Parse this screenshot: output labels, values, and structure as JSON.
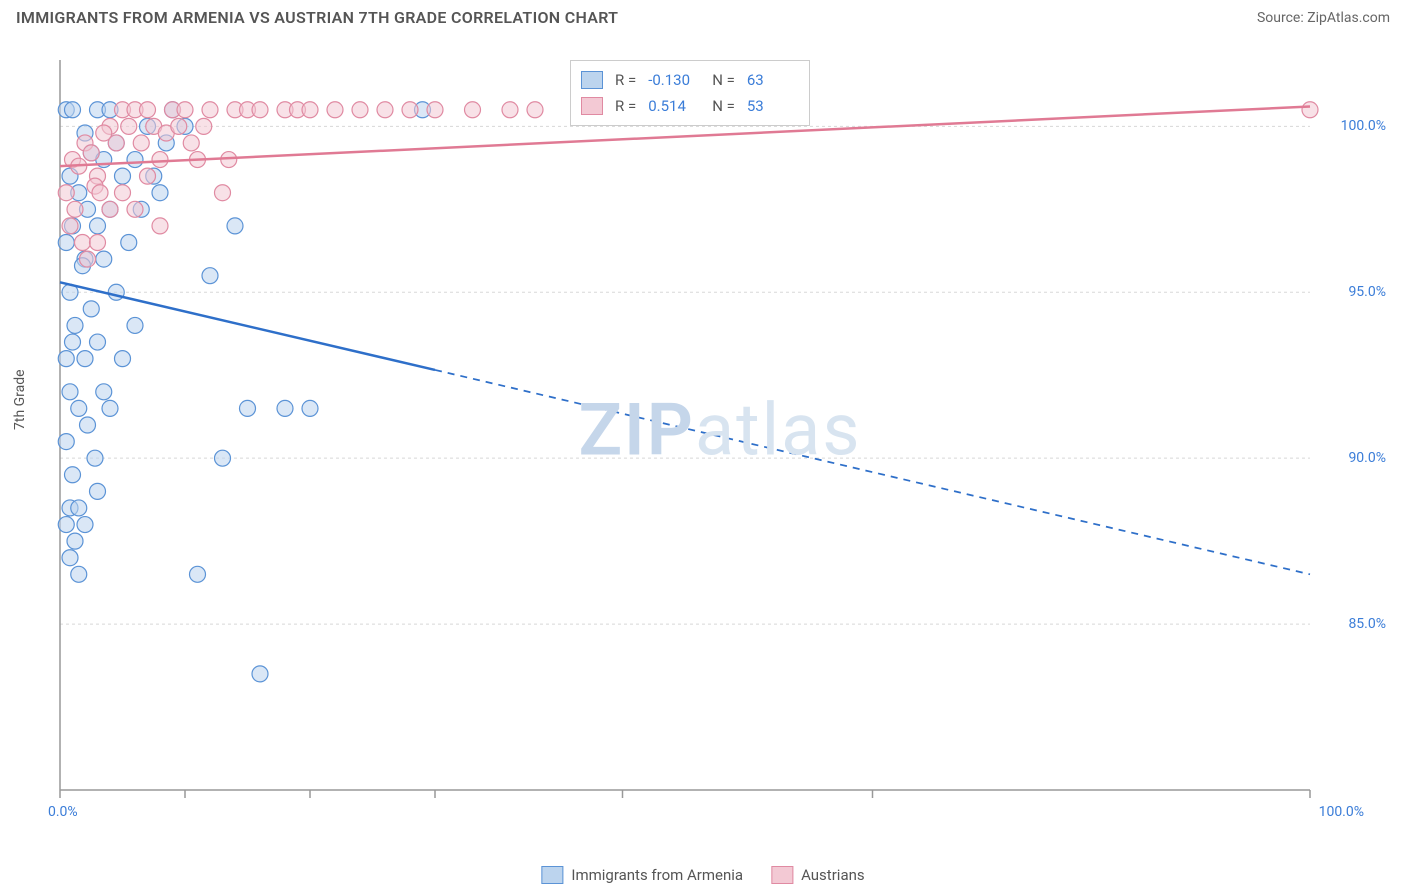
{
  "header": {
    "title": "IMMIGRANTS FROM ARMENIA VS AUSTRIAN 7TH GRADE CORRELATION CHART",
    "source": "Source: ZipAtlas.com"
  },
  "chart": {
    "type": "scatter",
    "y_axis_label": "7th Grade",
    "watermark": "ZIPatlas",
    "background_color": "#ffffff",
    "grid_color": "#d8d8d8",
    "axis_color": "#999999",
    "xlim": [
      0,
      100
    ],
    "ylim": [
      80,
      102
    ],
    "x_ticks": [
      {
        "v": 0,
        "label": "0.0%"
      },
      {
        "v": 10,
        "label": ""
      },
      {
        "v": 20,
        "label": ""
      },
      {
        "v": 30,
        "label": ""
      },
      {
        "v": 45,
        "label": ""
      },
      {
        "v": 65,
        "label": ""
      },
      {
        "v": 100,
        "label": "100.0%"
      }
    ],
    "y_ticks": [
      {
        "v": 85,
        "label": "85.0%"
      },
      {
        "v": 90,
        "label": "90.0%"
      },
      {
        "v": 95,
        "label": "95.0%"
      },
      {
        "v": 100,
        "label": "100.0%"
      }
    ],
    "series": [
      {
        "id": "armenia",
        "label": "Immigrants from Armenia",
        "color_fill": "#bcd4ee",
        "color_stroke": "#5b93d6",
        "marker_radius": 8,
        "fill_opacity": 0.55,
        "R": "-0.130",
        "N": "63",
        "trend": {
          "x1": 0,
          "y1": 95.3,
          "x2": 100,
          "y2": 86.5,
          "solid_until_x": 30,
          "color": "#2e6fc9",
          "width": 2.5
        },
        "points": [
          {
            "x": 0.5,
            "y": 100.5
          },
          {
            "x": 1,
            "y": 100.5
          },
          {
            "x": 2,
            "y": 99.8
          },
          {
            "x": 2.5,
            "y": 99.2
          },
          {
            "x": 3,
            "y": 100.5
          },
          {
            "x": 0.8,
            "y": 98.5
          },
          {
            "x": 1.5,
            "y": 98
          },
          {
            "x": 2.2,
            "y": 97.5
          },
          {
            "x": 3.5,
            "y": 99
          },
          {
            "x": 4,
            "y": 100.5
          },
          {
            "x": 1,
            "y": 97
          },
          {
            "x": 2,
            "y": 96
          },
          {
            "x": 0.5,
            "y": 96.5
          },
          {
            "x": 1.8,
            "y": 95.8
          },
          {
            "x": 3,
            "y": 97
          },
          {
            "x": 4.5,
            "y": 99.5
          },
          {
            "x": 0.8,
            "y": 95
          },
          {
            "x": 2.5,
            "y": 94.5
          },
          {
            "x": 1.2,
            "y": 94
          },
          {
            "x": 3.5,
            "y": 96
          },
          {
            "x": 0.5,
            "y": 93
          },
          {
            "x": 1,
            "y": 93.5
          },
          {
            "x": 4,
            "y": 97.5
          },
          {
            "x": 2,
            "y": 93
          },
          {
            "x": 0.8,
            "y": 92
          },
          {
            "x": 5,
            "y": 98.5
          },
          {
            "x": 1.5,
            "y": 91.5
          },
          {
            "x": 3,
            "y": 93.5
          },
          {
            "x": 0.5,
            "y": 90.5
          },
          {
            "x": 2.2,
            "y": 91
          },
          {
            "x": 6,
            "y": 99
          },
          {
            "x": 1,
            "y": 89.5
          },
          {
            "x": 4.5,
            "y": 95
          },
          {
            "x": 0.8,
            "y": 88.5
          },
          {
            "x": 1.5,
            "y": 88.5
          },
          {
            "x": 7,
            "y": 100
          },
          {
            "x": 2.8,
            "y": 90
          },
          {
            "x": 0.5,
            "y": 88
          },
          {
            "x": 3.5,
            "y": 92
          },
          {
            "x": 8,
            "y": 98
          },
          {
            "x": 1.2,
            "y": 87.5
          },
          {
            "x": 5.5,
            "y": 96.5
          },
          {
            "x": 2,
            "y": 88
          },
          {
            "x": 9,
            "y": 100.5
          },
          {
            "x": 0.8,
            "y": 87
          },
          {
            "x": 6.5,
            "y": 97.5
          },
          {
            "x": 4,
            "y": 91.5
          },
          {
            "x": 10,
            "y": 100
          },
          {
            "x": 1.5,
            "y": 86.5
          },
          {
            "x": 7.5,
            "y": 98.5
          },
          {
            "x": 3,
            "y": 89
          },
          {
            "x": 11,
            "y": 86.5
          },
          {
            "x": 5,
            "y": 93
          },
          {
            "x": 12,
            "y": 95.5
          },
          {
            "x": 8.5,
            "y": 99.5
          },
          {
            "x": 13,
            "y": 90
          },
          {
            "x": 6,
            "y": 94
          },
          {
            "x": 14,
            "y": 97
          },
          {
            "x": 15,
            "y": 91.5
          },
          {
            "x": 16,
            "y": 83.5
          },
          {
            "x": 18,
            "y": 91.5
          },
          {
            "x": 20,
            "y": 91.5
          },
          {
            "x": 29,
            "y": 100.5
          }
        ]
      },
      {
        "id": "austrians",
        "label": "Austrians",
        "color_fill": "#f3c9d4",
        "color_stroke": "#e08aa2",
        "marker_radius": 8,
        "fill_opacity": 0.55,
        "R": "0.514",
        "N": "53",
        "trend": {
          "x1": 0,
          "y1": 98.8,
          "x2": 100,
          "y2": 100.6,
          "solid_until_x": 100,
          "color": "#e07a94",
          "width": 2.5
        },
        "points": [
          {
            "x": 1,
            "y": 99
          },
          {
            "x": 2,
            "y": 99.5
          },
          {
            "x": 3,
            "y": 98.5
          },
          {
            "x": 0.5,
            "y": 98
          },
          {
            "x": 1.5,
            "y": 98.8
          },
          {
            "x": 2.5,
            "y": 99.2
          },
          {
            "x": 4,
            "y": 100
          },
          {
            "x": 0.8,
            "y": 97
          },
          {
            "x": 3.5,
            "y": 99.8
          },
          {
            "x": 5,
            "y": 100.5
          },
          {
            "x": 1.2,
            "y": 97.5
          },
          {
            "x": 2.8,
            "y": 98.2
          },
          {
            "x": 6,
            "y": 100.5
          },
          {
            "x": 4.5,
            "y": 99.5
          },
          {
            "x": 1.8,
            "y": 96.5
          },
          {
            "x": 7,
            "y": 100.5
          },
          {
            "x": 3.2,
            "y": 98
          },
          {
            "x": 5.5,
            "y": 100
          },
          {
            "x": 8,
            "y": 99
          },
          {
            "x": 2.2,
            "y": 96
          },
          {
            "x": 6.5,
            "y": 99.5
          },
          {
            "x": 9,
            "y": 100.5
          },
          {
            "x": 4,
            "y": 97.5
          },
          {
            "x": 7.5,
            "y": 100
          },
          {
            "x": 10,
            "y": 100.5
          },
          {
            "x": 3,
            "y": 96.5
          },
          {
            "x": 8.5,
            "y": 99.8
          },
          {
            "x": 11,
            "y": 99
          },
          {
            "x": 5,
            "y": 98
          },
          {
            "x": 9.5,
            "y": 100
          },
          {
            "x": 12,
            "y": 100.5
          },
          {
            "x": 6,
            "y": 97.5
          },
          {
            "x": 10.5,
            "y": 99.5
          },
          {
            "x": 13,
            "y": 98
          },
          {
            "x": 7,
            "y": 98.5
          },
          {
            "x": 11.5,
            "y": 100
          },
          {
            "x": 14,
            "y": 100.5
          },
          {
            "x": 8,
            "y": 97
          },
          {
            "x": 15,
            "y": 100.5
          },
          {
            "x": 13.5,
            "y": 99
          },
          {
            "x": 16,
            "y": 100.5
          },
          {
            "x": 18,
            "y": 100.5
          },
          {
            "x": 19,
            "y": 100.5
          },
          {
            "x": 20,
            "y": 100.5
          },
          {
            "x": 22,
            "y": 100.5
          },
          {
            "x": 24,
            "y": 100.5
          },
          {
            "x": 26,
            "y": 100.5
          },
          {
            "x": 28,
            "y": 100.5
          },
          {
            "x": 30,
            "y": 100.5
          },
          {
            "x": 33,
            "y": 100.5
          },
          {
            "x": 36,
            "y": 100.5
          },
          {
            "x": 38,
            "y": 100.5
          },
          {
            "x": 100,
            "y": 100.5
          }
        ]
      }
    ]
  },
  "legend_box": {
    "rows": [
      {
        "swatch_fill": "#bcd4ee",
        "swatch_stroke": "#5b93d6",
        "R_label": "R =",
        "R_val": "-0.130",
        "N_label": "N =",
        "N_val": "63"
      },
      {
        "swatch_fill": "#f3c9d4",
        "swatch_stroke": "#e08aa2",
        "R_label": "R =",
        "R_val": "0.514",
        "N_label": "N =",
        "N_val": "53"
      }
    ]
  },
  "bottom_legend": {
    "items": [
      {
        "fill": "#bcd4ee",
        "stroke": "#5b93d6",
        "label": "Immigrants from Armenia"
      },
      {
        "fill": "#f3c9d4",
        "stroke": "#e08aa2",
        "label": "Austrians"
      }
    ]
  }
}
